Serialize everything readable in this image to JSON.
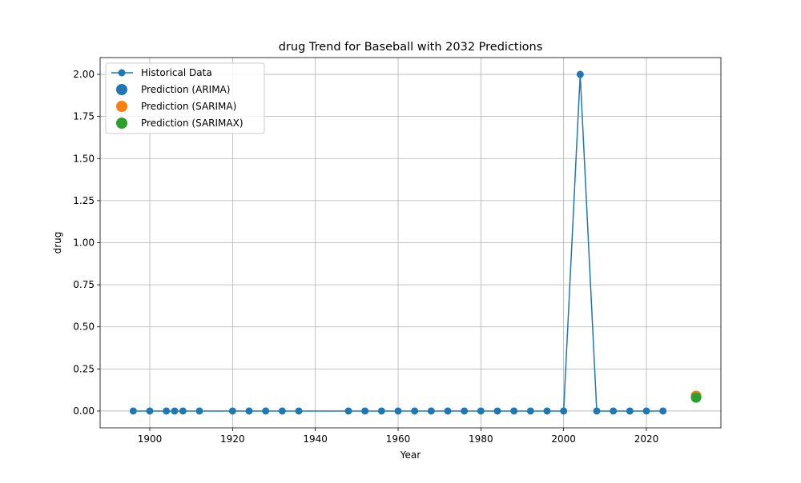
{
  "chart_data": {
    "type": "line",
    "title": "drug Trend for Baseball with 2032 Predictions",
    "xlabel": "Year",
    "ylabel": "drug",
    "xlim": [
      1888,
      2038
    ],
    "ylim": [
      -0.1,
      2.1
    ],
    "xticks": [
      1900,
      1920,
      1940,
      1960,
      1980,
      2000,
      2020
    ],
    "yticks": [
      0.0,
      0.25,
      0.5,
      0.75,
      1.0,
      1.25,
      1.5,
      1.75,
      2.0
    ],
    "ytick_labels": [
      "0.00",
      "0.25",
      "0.50",
      "0.75",
      "1.00",
      "1.25",
      "1.50",
      "1.75",
      "2.00"
    ],
    "grid": true,
    "legend_position": "top-left",
    "series": [
      {
        "name": "Historical Data",
        "kind": "line-marker",
        "color": "#1f77b4",
        "x": [
          1896,
          1900,
          1904,
          1906,
          1908,
          1912,
          1920,
          1924,
          1928,
          1932,
          1936,
          1948,
          1952,
          1956,
          1960,
          1964,
          1968,
          1972,
          1976,
          1980,
          1984,
          1988,
          1992,
          1996,
          2000,
          2004,
          2008,
          2012,
          2016,
          2020,
          2024
        ],
        "y": [
          0,
          0,
          0,
          0,
          0,
          0,
          0,
          0,
          0,
          0,
          0,
          0,
          0,
          0,
          0,
          0,
          0,
          0,
          0,
          0,
          0,
          0,
          0,
          0,
          0,
          2,
          0,
          0,
          0,
          0,
          0
        ]
      },
      {
        "name": "Prediction (ARIMA)",
        "kind": "point",
        "color": "#1f77b4",
        "x": [
          2032
        ],
        "y": [
          0.09
        ]
      },
      {
        "name": "Prediction (SARIMA)",
        "kind": "point",
        "color": "#ff7f0e",
        "x": [
          2032
        ],
        "y": [
          0.09
        ]
      },
      {
        "name": "Prediction (SARIMAX)",
        "kind": "point",
        "color": "#2ca02c",
        "x": [
          2032
        ],
        "y": [
          0.08
        ]
      }
    ]
  }
}
